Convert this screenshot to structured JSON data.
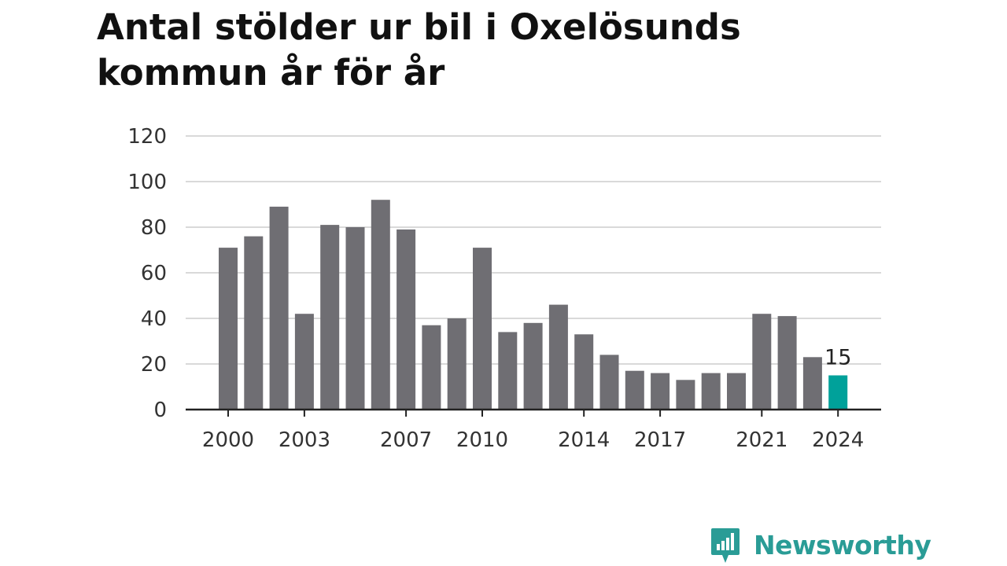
{
  "title": "Antal stölder ur bil i Oxelösunds kommun år för år",
  "brand": {
    "name": "Newsworthy",
    "color": "#2a9c96",
    "icon": "chart-speech-bubble-icon"
  },
  "colors": {
    "bar": "#6f6e73",
    "highlight": "#00a19a",
    "grid": "#d9d9d9",
    "axis": "#222222"
  },
  "chart_data": {
    "type": "bar",
    "title": "Antal stölder ur bil i Oxelösunds kommun år för år",
    "xlabel": "",
    "ylabel": "",
    "ylim": [
      0,
      120
    ],
    "yticks": [
      0,
      20,
      40,
      60,
      80,
      100,
      120
    ],
    "xtick_labels": [
      "2000",
      "2003",
      "2007",
      "2010",
      "2014",
      "2017",
      "2021",
      "2024"
    ],
    "grid": true,
    "categories": [
      "2000",
      "2001",
      "2002",
      "2003",
      "2004",
      "2005",
      "2006",
      "2007",
      "2008",
      "2009",
      "2010",
      "2011",
      "2012",
      "2013",
      "2014",
      "2015",
      "2016",
      "2017",
      "2018",
      "2019",
      "2020",
      "2021",
      "2022",
      "2023",
      "2024"
    ],
    "values": [
      71,
      76,
      89,
      42,
      81,
      80,
      92,
      79,
      37,
      40,
      71,
      34,
      38,
      46,
      33,
      24,
      17,
      16,
      13,
      16,
      16,
      42,
      41,
      23,
      15
    ],
    "highlight": {
      "category": "2024",
      "label": "15"
    }
  }
}
